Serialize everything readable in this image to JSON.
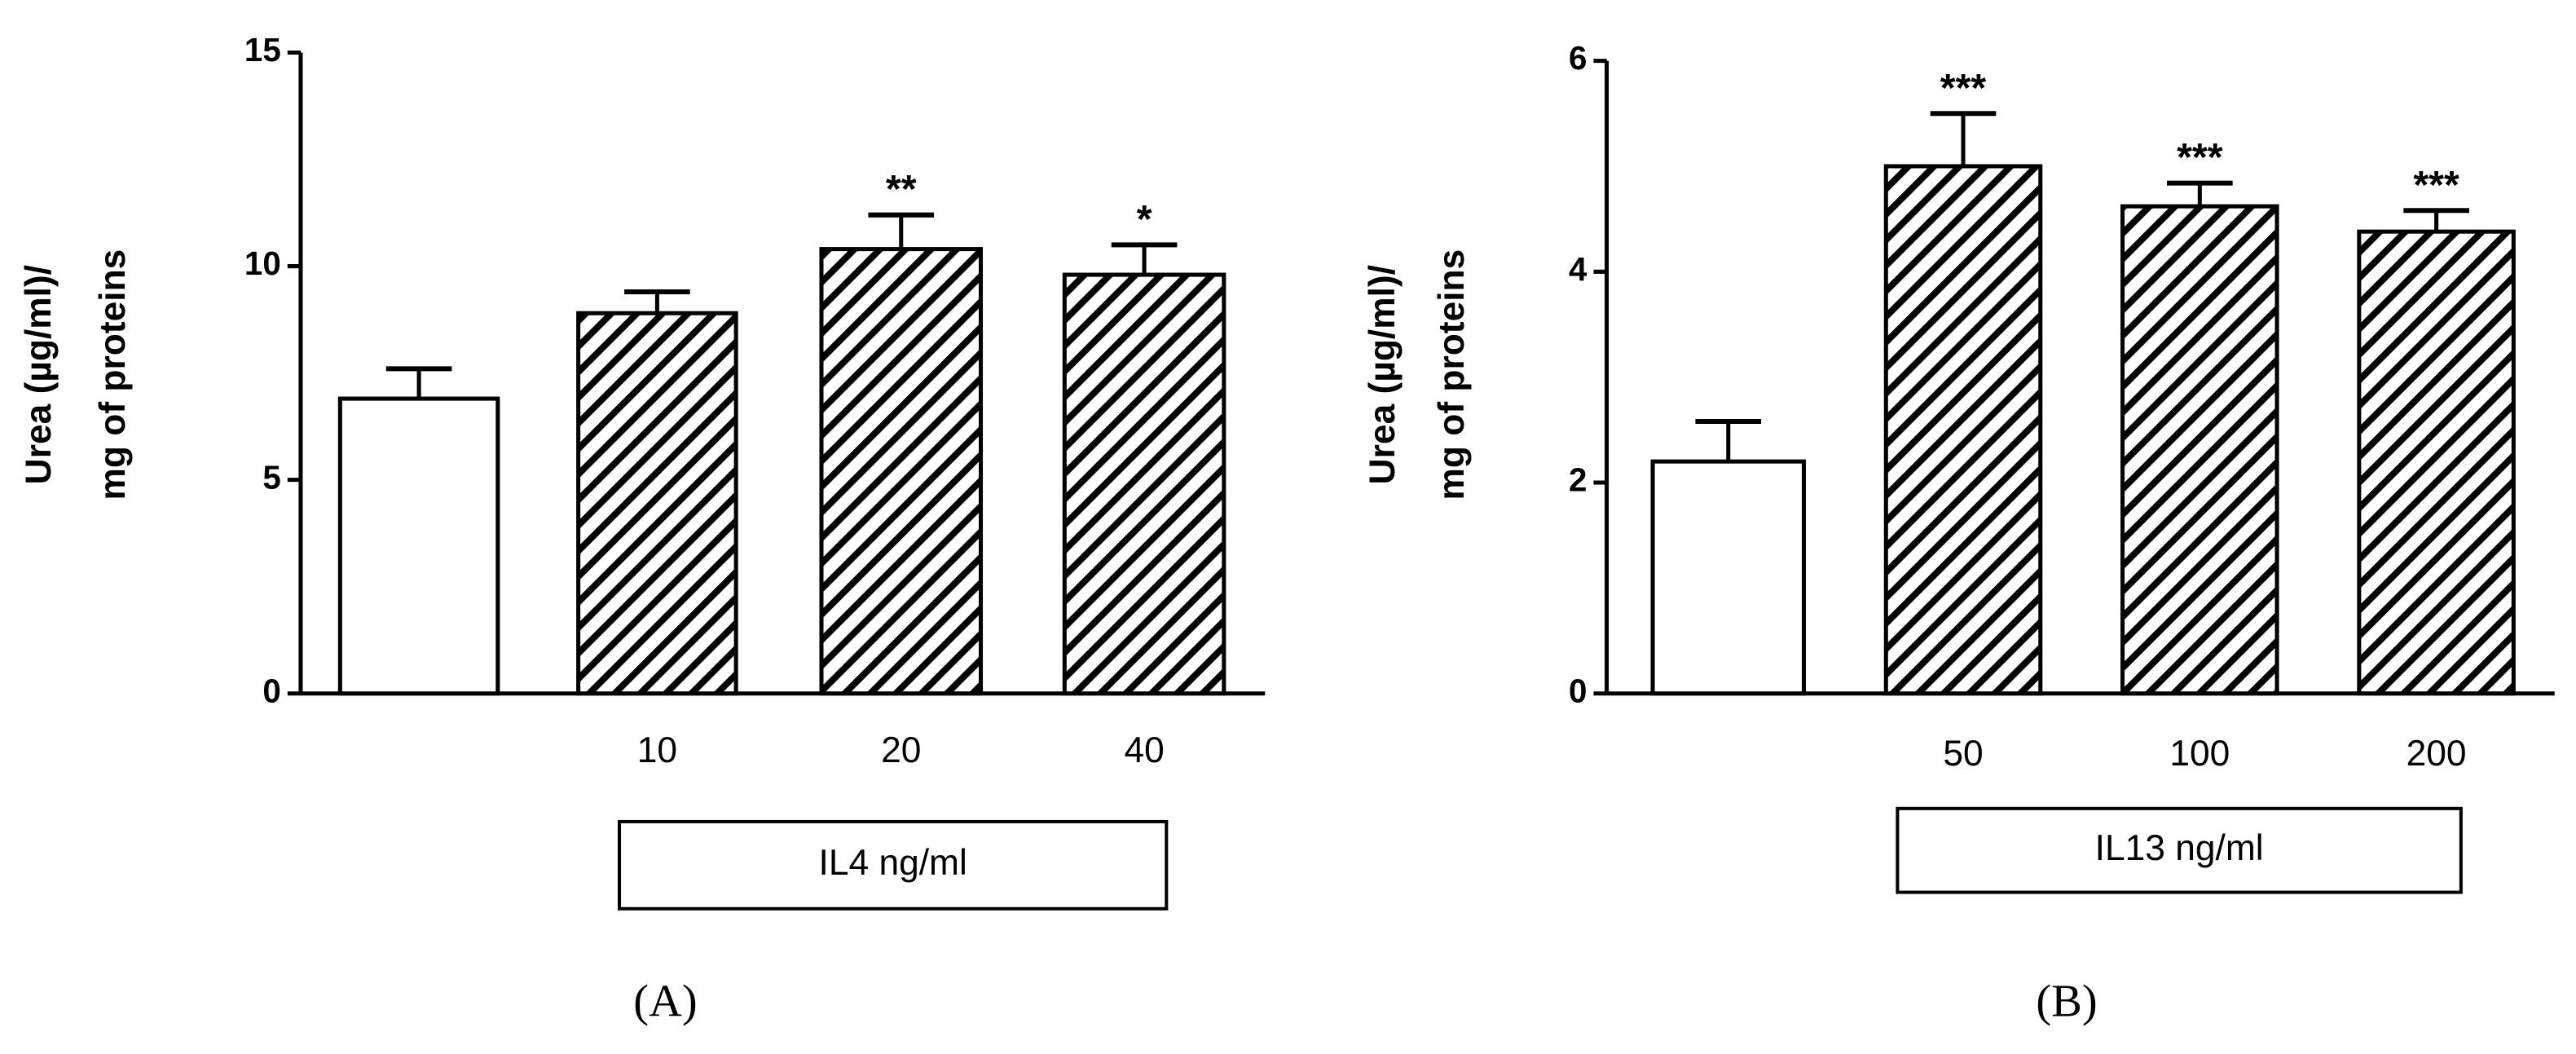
{
  "chart_data": [
    {
      "type": "bar",
      "panel_label": "(A)",
      "y_label": [
        "Urea (µg/ml)/",
        "mg of proteins"
      ],
      "x_label": "IL4 ng/ml",
      "categories": [
        null,
        "10",
        "20",
        "40"
      ],
      "values": [
        6.9,
        8.9,
        10.4,
        9.8
      ],
      "errors": [
        0.7,
        0.5,
        0.8,
        0.7
      ],
      "significance": [
        null,
        null,
        "**",
        "*"
      ],
      "patterns": [
        "none",
        "diagonal-hatch",
        "diagonal-hatch",
        "diagonal-hatch"
      ],
      "ylim": [
        0,
        15
      ],
      "yticks": [
        0,
        5,
        10,
        15
      ]
    },
    {
      "type": "bar",
      "panel_label": "(B)",
      "y_label": [
        "Urea (µg/ml)/",
        "mg of proteins"
      ],
      "x_label": "IL13 ng/ml",
      "categories": [
        null,
        "50",
        "100",
        "200"
      ],
      "values": [
        2.2,
        5.0,
        4.62,
        4.38
      ],
      "errors": [
        0.38,
        0.5,
        0.22,
        0.2
      ],
      "significance": [
        null,
        "***",
        "***",
        "***"
      ],
      "patterns": [
        "none",
        "diagonal-hatch",
        "diagonal-hatch",
        "diagonal-hatch"
      ],
      "ylim": [
        0,
        6
      ],
      "yticks": [
        0,
        2,
        4,
        6
      ]
    }
  ]
}
